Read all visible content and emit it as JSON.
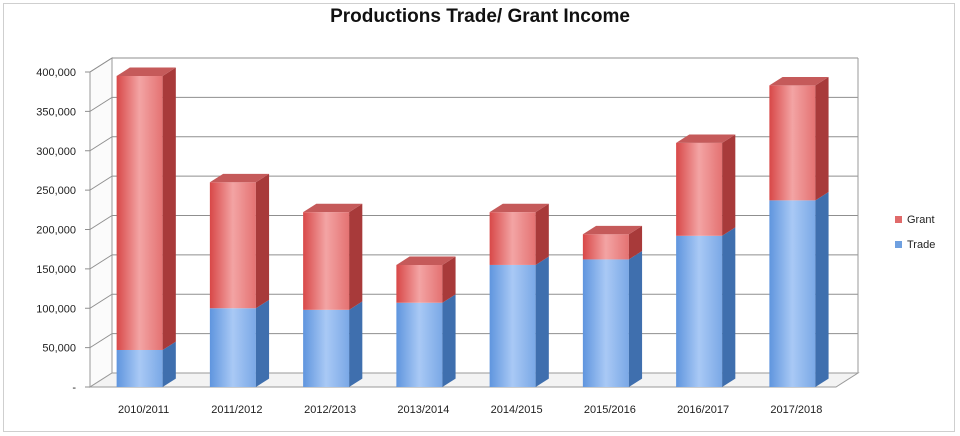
{
  "chart_data": {
    "type": "bar",
    "stacked": true,
    "three_d": true,
    "title": "Productions Trade/ Grant Income",
    "xlabel": "",
    "ylabel": "",
    "categories": [
      "2010/2011",
      "2011/2012",
      "2012/2013",
      "2013/2014",
      "2014/2015",
      "2015/2016",
      "2016/2017",
      "2017/2018"
    ],
    "series": [
      {
        "name": "Trade",
        "color": "#6fa0e0",
        "values": [
          47000,
          100000,
          98000,
          107000,
          155000,
          162000,
          192000,
          237000
        ]
      },
      {
        "name": "Grant",
        "color": "#e06a6a",
        "values": [
          348000,
          160000,
          124000,
          48000,
          67000,
          32000,
          118000,
          146000
        ]
      }
    ],
    "ylim": [
      0,
      400000
    ],
    "yticks": [
      0,
      50000,
      100000,
      150000,
      200000,
      250000,
      300000,
      350000,
      400000
    ],
    "ytick_labels": [
      "-",
      "50,000",
      "100,000",
      "150,000",
      "200,000",
      "250,000",
      "300,000",
      "350,000",
      "400,000"
    ],
    "legend_position": "right",
    "legend_order": [
      "Grant",
      "Trade"
    ],
    "grid": true
  }
}
